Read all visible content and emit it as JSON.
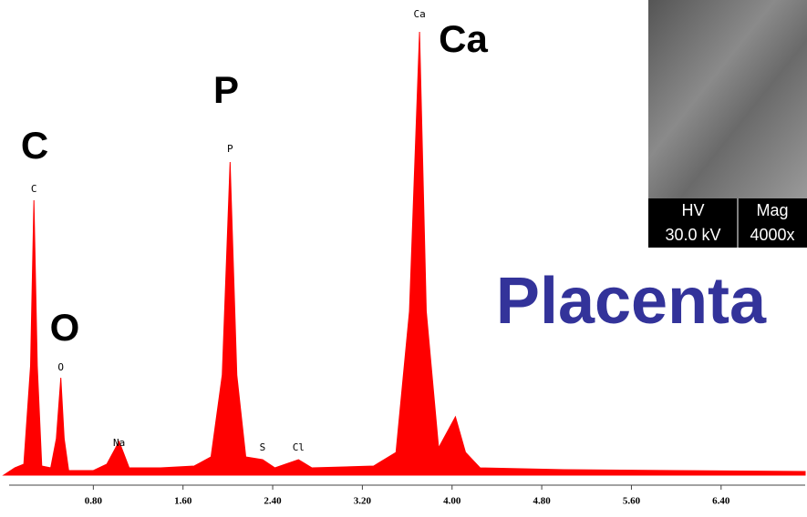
{
  "chart_data": {
    "type": "spectrum",
    "title": "Placenta",
    "color": "#ff0000",
    "x": [
      0.0,
      0.1,
      0.18,
      0.24,
      0.27,
      0.3,
      0.34,
      0.42,
      0.47,
      0.51,
      0.54,
      0.58,
      0.8,
      0.92,
      1.03,
      1.12,
      1.4,
      1.7,
      1.85,
      1.95,
      2.02,
      2.08,
      2.16,
      2.31,
      2.42,
      2.63,
      2.75,
      3.3,
      3.5,
      3.62,
      3.71,
      3.77,
      3.88,
      4.03,
      4.12,
      4.25,
      5.0,
      6.0,
      7.15
    ],
    "values": [
      0,
      8,
      12,
      120,
      302,
      120,
      10,
      8,
      40,
      107,
      40,
      5,
      5,
      12,
      37,
      8,
      8,
      10,
      20,
      110,
      344,
      110,
      20,
      17,
      8,
      17,
      8,
      10,
      25,
      180,
      487,
      180,
      30,
      64,
      25,
      8,
      6,
      5,
      4
    ],
    "xlim": [
      0,
      7.15
    ],
    "ylim": [
      0,
      490
    ],
    "xticks": [
      {
        "value": 0.8,
        "label": "0.80"
      },
      {
        "value": 1.6,
        "label": "1.60"
      },
      {
        "value": 2.4,
        "label": "2.40"
      },
      {
        "value": 3.2,
        "label": "3.20"
      },
      {
        "value": 4.0,
        "label": "4.00"
      },
      {
        "value": 4.8,
        "label": "4.80"
      },
      {
        "value": 5.6,
        "label": "5.60"
      },
      {
        "value": 6.4,
        "label": "6.40"
      }
    ],
    "peak_labels": [
      "C",
      "O",
      "Na",
      "P",
      "S",
      "Cl",
      "Ca"
    ],
    "element_labels": [
      "C",
      "O",
      "P",
      "Ca"
    ],
    "inset": {
      "headers": [
        "HV",
        "Mag"
      ],
      "values": [
        "30.0 kV",
        "4000x"
      ]
    }
  }
}
